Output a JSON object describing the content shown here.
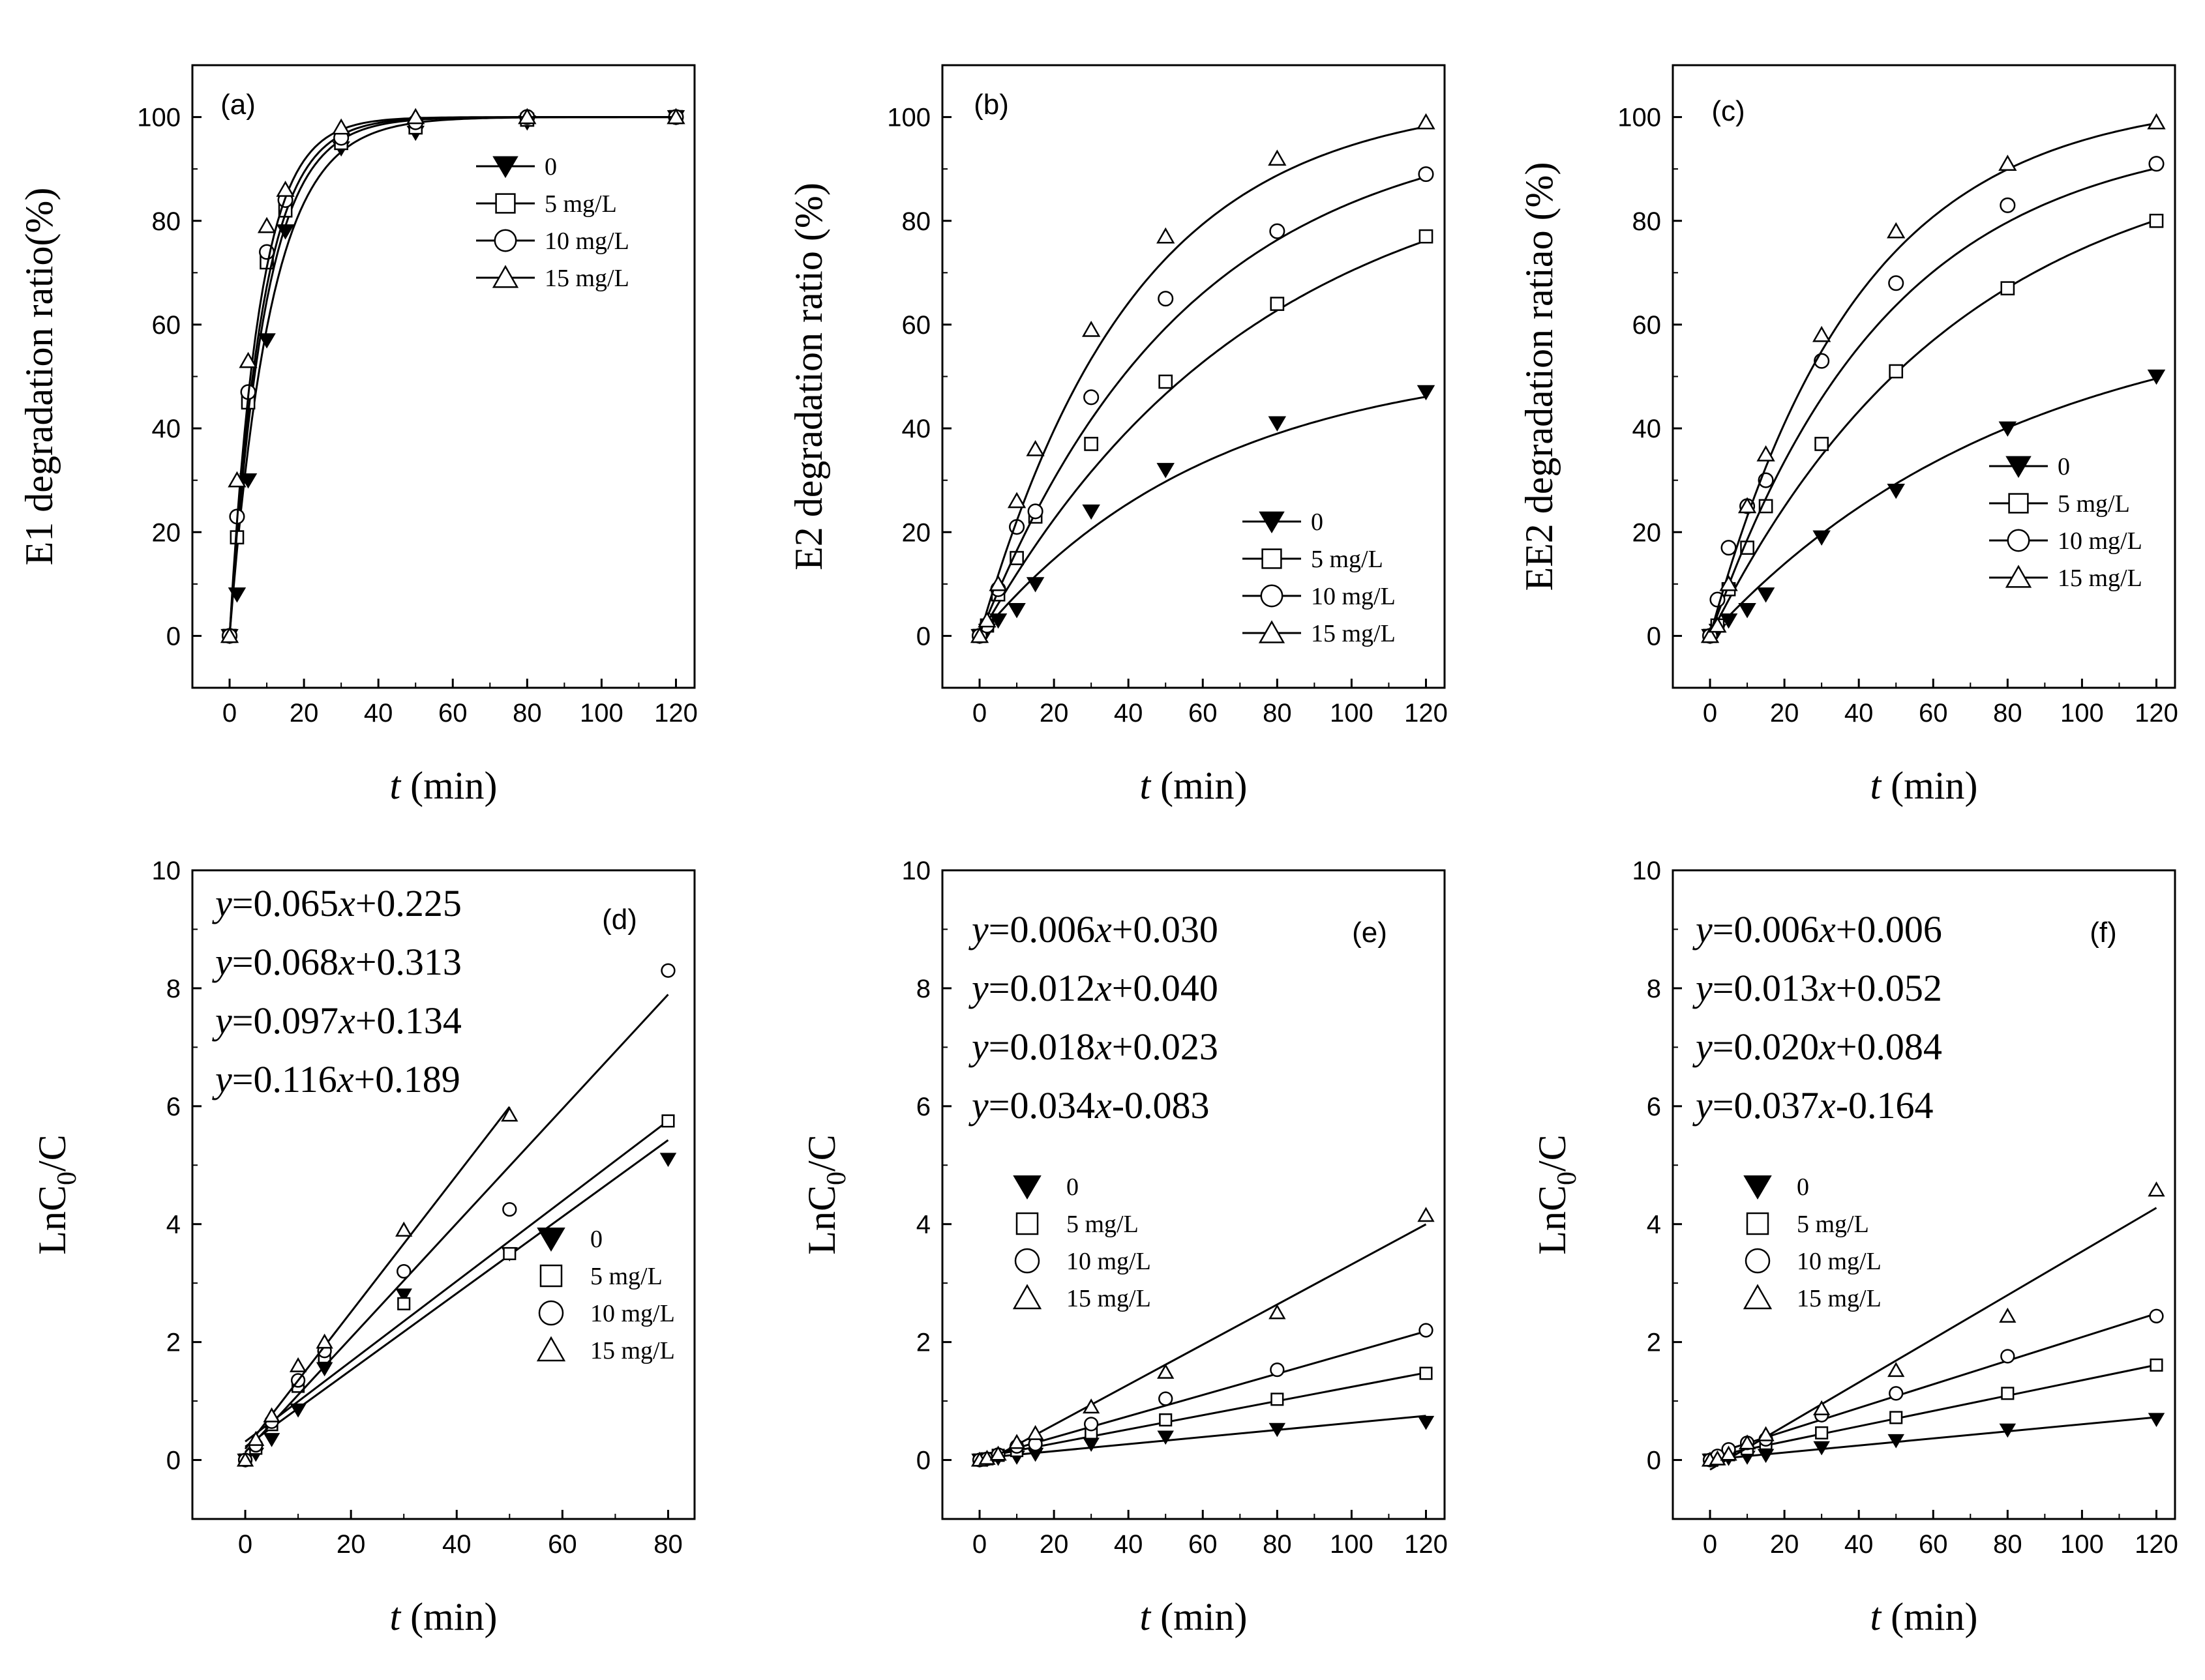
{
  "chart_data": [
    {
      "type": "line",
      "panel": "(a)",
      "ylabel": "E1 degradation ratio(%)",
      "xlabel_var": "t",
      "xlabel_unit": " (min)",
      "xlim": [
        -10,
        125
      ],
      "ylim": [
        -10,
        110
      ],
      "xticks": [
        0,
        20,
        40,
        60,
        80,
        100,
        120
      ],
      "yticks": [
        0,
        20,
        40,
        60,
        80,
        100
      ],
      "legend_pos": "right",
      "x": [
        0,
        2,
        5,
        10,
        15,
        30,
        50,
        80,
        120
      ],
      "series": [
        {
          "name": "0",
          "marker": "tri-down-filled",
          "values": [
            0,
            8,
            30,
            57,
            78,
            94,
            97,
            99,
            100
          ],
          "fit": [
            100,
            0.09
          ]
        },
        {
          "name": "5 mg/L",
          "marker": "square",
          "values": [
            0,
            19,
            45,
            72,
            82,
            95,
            98,
            99.5,
            100
          ],
          "fit": [
            100,
            0.104
          ]
        },
        {
          "name": "10 mg/L",
          "marker": "circle",
          "values": [
            0,
            23,
            47,
            74,
            84,
            96,
            99,
            100,
            100
          ],
          "fit": [
            100,
            0.112
          ]
        },
        {
          "name": "15 mg/L",
          "marker": "tri-up",
          "values": [
            0,
            30,
            53,
            79,
            86,
            98,
            100,
            100,
            100
          ],
          "fit": [
            100,
            0.124
          ]
        }
      ]
    },
    {
      "type": "line",
      "panel": "(b)",
      "ylabel": "E2 degradation ratio (%)",
      "xlabel_var": "t",
      "xlabel_unit": " (min)",
      "xlim": [
        -10,
        125
      ],
      "ylim": [
        -10,
        110
      ],
      "xticks": [
        0,
        20,
        40,
        60,
        80,
        100,
        120
      ],
      "yticks": [
        0,
        20,
        40,
        60,
        80,
        100
      ],
      "legend_pos": "bottom-right",
      "x": [
        0,
        2,
        5,
        10,
        15,
        30,
        50,
        80,
        120
      ],
      "series": [
        {
          "name": "0",
          "marker": "tri-down-filled",
          "values": [
            0,
            1,
            3,
            5,
            10,
            24,
            32,
            41,
            47
          ],
          "fit": [
            54,
            0.016
          ]
        },
        {
          "name": "5 mg/L",
          "marker": "square",
          "values": [
            0,
            2,
            8,
            15,
            23,
            37,
            49,
            64,
            77
          ],
          "fit": [
            95,
            0.0135
          ]
        },
        {
          "name": "10 mg/L",
          "marker": "circle",
          "values": [
            0,
            2,
            9,
            21,
            24,
            46,
            65,
            78,
            89
          ],
          "fit": [
            100,
            0.018
          ]
        },
        {
          "name": "15 mg/L",
          "marker": "tri-up",
          "values": [
            0,
            3,
            10,
            26,
            36,
            59,
            77,
            92,
            99
          ],
          "fit": [
            104,
            0.024
          ]
        }
      ]
    },
    {
      "type": "line",
      "panel": "(c)",
      "ylabel": "EE2 degradation ratiao (%)",
      "xlabel_var": "t",
      "xlabel_unit": " (min)",
      "xlim": [
        -10,
        125
      ],
      "ylim": [
        -10,
        110
      ],
      "xticks": [
        0,
        20,
        40,
        60,
        80,
        100,
        120
      ],
      "yticks": [
        0,
        20,
        40,
        60,
        80,
        100
      ],
      "legend_pos": "right",
      "x": [
        0,
        2,
        5,
        10,
        15,
        30,
        50,
        80,
        120
      ],
      "series": [
        {
          "name": "0",
          "marker": "tri-down-filled",
          "values": [
            0,
            1,
            3,
            5,
            8,
            19,
            28,
            40,
            50
          ],
          "fit": [
            65,
            0.012
          ]
        },
        {
          "name": "5 mg/L",
          "marker": "square",
          "values": [
            0,
            2,
            9,
            17,
            25,
            37,
            51,
            67,
            80
          ],
          "fit": [
            96,
            0.015
          ]
        },
        {
          "name": "10 mg/L",
          "marker": "circle",
          "values": [
            0,
            7,
            17,
            25,
            30,
            53,
            68,
            83,
            91
          ],
          "fit": [
            98,
            0.021
          ]
        },
        {
          "name": "15 mg/L",
          "marker": "tri-up",
          "values": [
            0,
            2,
            10,
            25,
            35,
            58,
            78,
            91,
            99
          ],
          "fit": [
            104,
            0.025
          ]
        }
      ]
    },
    {
      "type": "scatter",
      "panel": "(d)",
      "ylabel_main": "LnC",
      "ylabel_sub": "0",
      "ylabel_tail": "/C",
      "xlabel_var": "t",
      "xlabel_unit": " (min)",
      "xlim": [
        -10,
        85
      ],
      "ylim": [
        -1,
        10
      ],
      "xticks": [
        0,
        20,
        40,
        60,
        80
      ],
      "yticks": [
        0,
        2,
        4,
        6,
        8,
        10
      ],
      "legend_pos": "lower-right",
      "equations": [
        {
          "eqvar": "y",
          "eqmid": "=0.065",
          "eqx": "x",
          "eqtail": "+0.225"
        },
        {
          "eqvar": "y",
          "eqmid": "=0.068",
          "eqx": "x",
          "eqtail": "+0.313"
        },
        {
          "eqvar": "y",
          "eqmid": "=0.097",
          "eqx": "x",
          "eqtail": "+0.134"
        },
        {
          "eqvar": "y",
          "eqmid": "=0.116",
          "eqx": "x",
          "eqtail": "+0.189"
        }
      ],
      "series": [
        {
          "name": "0",
          "marker": "tri-down-filled",
          "x": [
            0,
            2,
            5,
            10,
            15,
            30,
            50,
            80
          ],
          "values": [
            0,
            0.1,
            0.35,
            0.85,
            1.55,
            2.8,
            3.5,
            5.1
          ],
          "slope": 0.065,
          "intercept": 0.225,
          "xmax": 80
        },
        {
          "name": "5 mg/L",
          "marker": "square",
          "x": [
            0,
            2,
            5,
            10,
            15,
            30,
            50,
            80
          ],
          "values": [
            0,
            0.2,
            0.6,
            1.25,
            1.75,
            2.65,
            3.5,
            5.75
          ],
          "slope": 0.068,
          "intercept": 0.313,
          "xmax": 80
        },
        {
          "name": "10 mg/L",
          "marker": "circle",
          "x": [
            0,
            2,
            5,
            10,
            15,
            30,
            50,
            80
          ],
          "values": [
            0,
            0.25,
            0.65,
            1.35,
            1.85,
            3.2,
            4.25,
            8.3
          ],
          "slope": 0.097,
          "intercept": 0.134,
          "xmax": 80
        },
        {
          "name": "15 mg/L",
          "marker": "tri-up",
          "x": [
            0,
            2,
            5,
            10,
            15,
            30,
            50
          ],
          "values": [
            0,
            0.35,
            0.75,
            1.6,
            2.0,
            3.9,
            5.85
          ],
          "slope": 0.116,
          "intercept": 0.189,
          "xmax": 50
        }
      ]
    },
    {
      "type": "scatter",
      "panel": "(e)",
      "ylabel_main": "LnC",
      "ylabel_sub": "0",
      "ylabel_tail": "/C",
      "xlabel_var": "t",
      "xlabel_unit": " (min)",
      "xlim": [
        -10,
        125
      ],
      "ylim": [
        -1,
        10
      ],
      "xticks": [
        0,
        20,
        40,
        60,
        80,
        100,
        120
      ],
      "yticks": [
        0,
        2,
        4,
        6,
        8,
        10
      ],
      "legend_pos": "middle-left",
      "equations": [
        {
          "eqvar": "y",
          "eqmid": "=0.006",
          "eqx": "x",
          "eqtail": "+0.030"
        },
        {
          "eqvar": "y",
          "eqmid": "=0.012",
          "eqx": "x",
          "eqtail": "+0.040"
        },
        {
          "eqvar": "y",
          "eqmid": "=0.018",
          "eqx": "x",
          "eqtail": "+0.023"
        },
        {
          "eqvar": "y",
          "eqmid": "=0.034",
          "eqx": "x",
          "eqtail": "-0.083"
        }
      ],
      "series": [
        {
          "name": "0",
          "marker": "tri-down-filled",
          "x": [
            0,
            2,
            5,
            10,
            15,
            30,
            50,
            80,
            120
          ],
          "values": [
            0,
            0.01,
            0.03,
            0.05,
            0.1,
            0.27,
            0.39,
            0.52,
            0.64
          ],
          "slope": 0.006,
          "intercept": 0.03,
          "xmax": 120
        },
        {
          "name": "5 mg/L",
          "marker": "square",
          "x": [
            0,
            2,
            5,
            10,
            15,
            30,
            50,
            80,
            120
          ],
          "values": [
            0,
            0.02,
            0.08,
            0.16,
            0.26,
            0.46,
            0.68,
            1.03,
            1.47
          ],
          "slope": 0.012,
          "intercept": 0.04,
          "xmax": 120
        },
        {
          "name": "10 mg/L",
          "marker": "circle",
          "x": [
            0,
            2,
            5,
            10,
            15,
            30,
            50,
            80,
            120
          ],
          "values": [
            0,
            0.02,
            0.09,
            0.23,
            0.27,
            0.61,
            1.04,
            1.53,
            2.2
          ],
          "slope": 0.018,
          "intercept": 0.023,
          "xmax": 120
        },
        {
          "name": "15 mg/L",
          "marker": "tri-up",
          "x": [
            0,
            2,
            5,
            10,
            15,
            30,
            50,
            80,
            120
          ],
          "values": [
            0,
            0.03,
            0.1,
            0.3,
            0.45,
            0.9,
            1.49,
            2.5,
            4.15
          ],
          "slope": 0.034,
          "intercept": -0.083,
          "xmax": 120
        }
      ]
    },
    {
      "type": "scatter",
      "panel": "(f)",
      "ylabel_main": "LnC",
      "ylabel_sub": "0",
      "ylabel_tail": "/C",
      "xlabel_var": "t",
      "xlabel_unit": " (min)",
      "xlim": [
        -10,
        125
      ],
      "ylim": [
        -1,
        10
      ],
      "xticks": [
        0,
        20,
        40,
        60,
        80,
        100,
        120
      ],
      "yticks": [
        0,
        2,
        4,
        6,
        8,
        10
      ],
      "legend_pos": "middle-left",
      "equations": [
        {
          "eqvar": "y",
          "eqmid": "=0.006",
          "eqx": "x",
          "eqtail": "+0.006"
        },
        {
          "eqvar": "y",
          "eqmid": "=0.013",
          "eqx": "x",
          "eqtail": "+0.052"
        },
        {
          "eqvar": "y",
          "eqmid": "=0.020",
          "eqx": "x",
          "eqtail": "+0.084"
        },
        {
          "eqvar": "y",
          "eqmid": "=0.037",
          "eqx": "x",
          "eqtail": "-0.164"
        }
      ],
      "series": [
        {
          "name": "0",
          "marker": "tri-down-filled",
          "x": [
            0,
            2,
            5,
            10,
            15,
            30,
            50,
            80,
            120
          ],
          "values": [
            0,
            0.01,
            0.03,
            0.05,
            0.08,
            0.21,
            0.33,
            0.51,
            0.69
          ],
          "slope": 0.006,
          "intercept": 0.006,
          "xmax": 120
        },
        {
          "name": "5 mg/L",
          "marker": "square",
          "x": [
            0,
            2,
            5,
            10,
            15,
            30,
            50,
            80,
            120
          ],
          "values": [
            0,
            0.02,
            0.09,
            0.19,
            0.28,
            0.46,
            0.72,
            1.13,
            1.61
          ],
          "slope": 0.013,
          "intercept": 0.052,
          "xmax": 120
        },
        {
          "name": "10 mg/L",
          "marker": "circle",
          "x": [
            0,
            2,
            5,
            10,
            15,
            30,
            50,
            80,
            120
          ],
          "values": [
            0,
            0.07,
            0.18,
            0.29,
            0.35,
            0.76,
            1.13,
            1.76,
            2.44
          ],
          "slope": 0.02,
          "intercept": 0.084,
          "xmax": 120
        },
        {
          "name": "15 mg/L",
          "marker": "tri-up",
          "x": [
            0,
            2,
            5,
            10,
            15,
            30,
            50,
            80,
            120
          ],
          "values": [
            0,
            0.02,
            0.1,
            0.29,
            0.43,
            0.87,
            1.52,
            2.44,
            4.58
          ],
          "slope": 0.037,
          "intercept": -0.164,
          "xmax": 120
        }
      ]
    }
  ]
}
